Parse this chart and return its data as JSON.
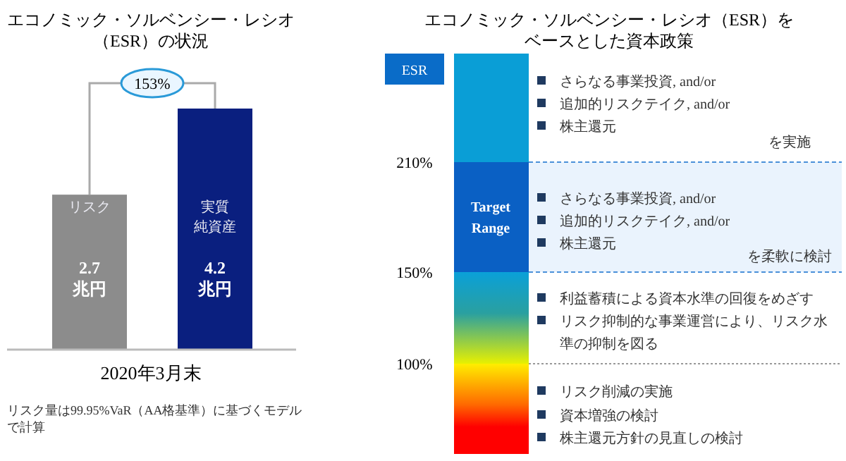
{
  "chart_data": [
    {
      "type": "bar",
      "title": "エコノミック・ソルベンシー・レシオ（ESR）の状況",
      "xlabel": "2020年3月末",
      "categories": [
        "リスク",
        "実質純資産"
      ],
      "values": [
        2.7,
        4.2
      ],
      "colors": [
        "#8c8c8c",
        "#0a1f7f"
      ],
      "value_labels": [
        "2.7\n兆円",
        "4.2\n兆円"
      ],
      "annotations": [
        "153%",
        "リスク量は99.95%VaR（AA格基準）に基づくモデルで計算"
      ]
    },
    {
      "type": "other",
      "title": "エコノミック・ソルベンシー・レシオ（ESR）をベースとした資本政策",
      "ylabel": "ESR",
      "annotations": [
        "210%",
        "150%",
        "100%",
        "Target Range",
        "さらなる事業投資, and/or",
        "追加的リスクテイク, and/or",
        "株主還元",
        "を実施",
        "さらなる事業投資, and/or",
        "追加的リスクテイク, and/or",
        "株主還元",
        "を柔軟に検討",
        "利益蓄積による資本水準の回復をめざす",
        "リスク抑制的な事業運営により、リスク水準の抑制を図る",
        "リスク削減の実施",
        "資本増強の検討",
        "株主還元方針の見直しの検討"
      ]
    }
  ]
}
